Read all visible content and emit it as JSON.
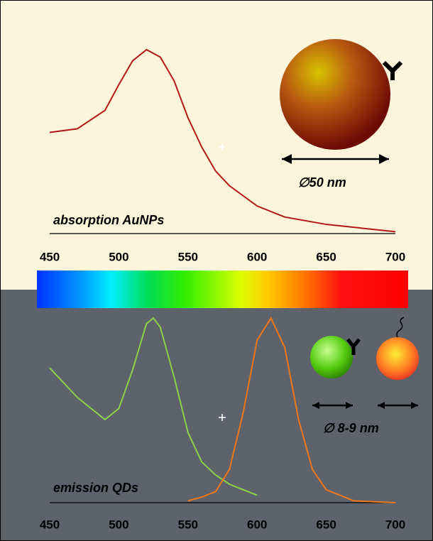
{
  "chart_data": [
    {
      "type": "line",
      "label": "absorption AuNPs",
      "annotation": "∅50 nm",
      "x": [
        450,
        470,
        490,
        500,
        510,
        520,
        530,
        540,
        550,
        560,
        570,
        580,
        600,
        620,
        650,
        700
      ],
      "xlim": [
        450,
        700
      ],
      "xticks": [
        450,
        500,
        550,
        600,
        650,
        700
      ],
      "ylim": [
        0,
        1
      ],
      "series": [
        {
          "color": "#b01818",
          "values": [
            0.55,
            0.57,
            0.67,
            0.81,
            0.94,
            1.0,
            0.96,
            0.83,
            0.63,
            0.47,
            0.34,
            0.26,
            0.15,
            0.09,
            0.05,
            0.01
          ]
        }
      ]
    },
    {
      "type": "line",
      "label": "emission QDs",
      "annotation": "∅ 8-9 nm",
      "x": [
        450,
        470,
        490,
        500,
        510,
        520,
        525,
        530,
        540,
        550,
        560,
        570,
        580,
        590,
        600,
        610,
        620,
        630,
        640,
        650,
        670,
        700
      ],
      "xlim": [
        450,
        700
      ],
      "xticks": [
        450,
        500,
        550,
        600,
        650,
        700
      ],
      "ylim": [
        0,
        1
      ],
      "series": [
        {
          "color": "#8ed14a",
          "values": [
            0.73,
            0.57,
            0.45,
            0.51,
            0.72,
            0.97,
            1.0,
            0.95,
            0.68,
            0.38,
            0.22,
            0.15,
            0.1,
            0.07,
            0.04,
            null,
            null,
            null,
            null,
            null,
            null,
            null
          ]
        },
        {
          "color": "#f07818",
          "values": [
            null,
            null,
            null,
            null,
            null,
            null,
            null,
            null,
            null,
            0.01,
            0.03,
            0.06,
            0.18,
            0.49,
            0.88,
            1.0,
            0.84,
            0.45,
            0.18,
            0.07,
            0.01,
            0
          ]
        }
      ]
    }
  ]
}
